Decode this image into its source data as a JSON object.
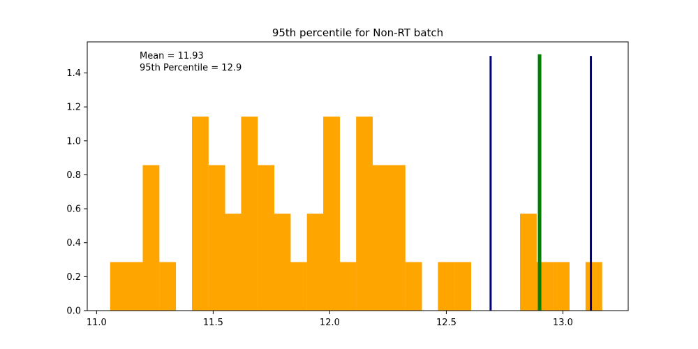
{
  "chart_data": {
    "type": "bar",
    "title": "95th percentile for Non-RT batch",
    "xlabel": "",
    "ylabel": "",
    "xlim": [
      10.96,
      13.28
    ],
    "ylim": [
      0,
      1.5
    ],
    "grid": false,
    "xticks": [
      11.0,
      11.5,
      12.0,
      12.5,
      13.0
    ],
    "xtick_labels": [
      "11.0",
      "11.5",
      "12.0",
      "12.5",
      "13.0"
    ],
    "yticks": [
      0.0,
      0.2,
      0.4,
      0.6,
      0.8,
      1.0,
      1.2,
      1.4
    ],
    "ytick_labels": [
      "0.0",
      "0.2",
      "0.4",
      "0.6",
      "0.8",
      "1.0",
      "1.2",
      "1.4"
    ],
    "bar_color": "#ffa500",
    "bin_width": 0.0703,
    "bins": [
      {
        "x0": 11.058,
        "value": 0.286
      },
      {
        "x0": 11.128,
        "value": 0.286
      },
      {
        "x0": 11.198,
        "value": 0.857
      },
      {
        "x0": 11.269,
        "value": 0.286
      },
      {
        "x0": 11.339,
        "value": 0.0
      },
      {
        "x0": 11.409,
        "value": 1.143
      },
      {
        "x0": 11.48,
        "value": 0.857
      },
      {
        "x0": 11.55,
        "value": 0.571
      },
      {
        "x0": 11.62,
        "value": 1.143
      },
      {
        "x0": 11.691,
        "value": 0.857
      },
      {
        "x0": 11.761,
        "value": 0.571
      },
      {
        "x0": 11.831,
        "value": 0.286
      },
      {
        "x0": 11.902,
        "value": 0.571
      },
      {
        "x0": 11.972,
        "value": 1.143
      },
      {
        "x0": 12.042,
        "value": 0.286
      },
      {
        "x0": 12.113,
        "value": 1.143
      },
      {
        "x0": 12.183,
        "value": 0.857
      },
      {
        "x0": 12.253,
        "value": 0.857
      },
      {
        "x0": 12.324,
        "value": 0.286
      },
      {
        "x0": 12.394,
        "value": 0.0
      },
      {
        "x0": 12.464,
        "value": 0.286
      },
      {
        "x0": 12.535,
        "value": 0.286
      },
      {
        "x0": 12.605,
        "value": 0.0
      },
      {
        "x0": 12.675,
        "value": 0.0
      },
      {
        "x0": 12.746,
        "value": 0.0
      },
      {
        "x0": 12.816,
        "value": 0.571
      },
      {
        "x0": 12.886,
        "value": 0.286
      },
      {
        "x0": 12.957,
        "value": 0.286
      },
      {
        "x0": 13.027,
        "value": 0.0
      },
      {
        "x0": 13.097,
        "value": 0.286
      }
    ],
    "vlines": [
      {
        "x": 12.69,
        "ymax": 1.5,
        "color": "#000080",
        "role": "lower"
      },
      {
        "x": 12.9,
        "ymax": 1.51,
        "color": "#008000",
        "role": "percentile"
      },
      {
        "x": 13.12,
        "ymax": 1.5,
        "color": "#000080",
        "role": "upper"
      }
    ],
    "annotations": [
      "Mean = 11.93",
      "95th Percentile = 12.9"
    ]
  }
}
